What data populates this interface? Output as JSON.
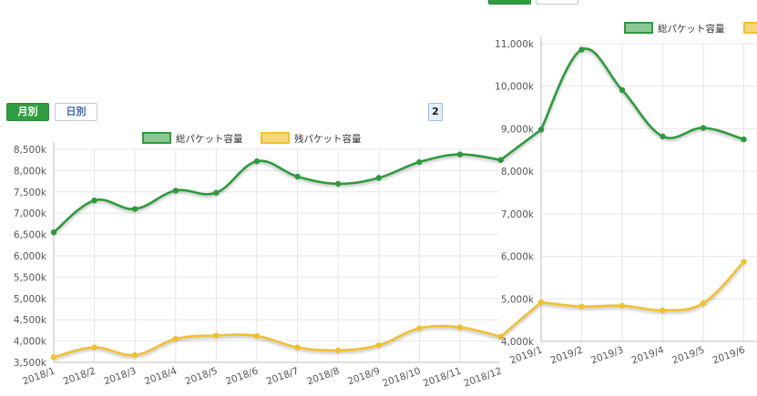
{
  "controls": {
    "monthly_label": "月別",
    "daily_label": "日別",
    "page_stub_label": "2"
  },
  "colors": {
    "total": "#2e9a3e",
    "total_fill": "#8cc895",
    "remaining": "#f0c030",
    "remaining_fill": "#f5d779",
    "grid": "#e6e6e6"
  },
  "chart_data": [
    {
      "type": "line",
      "categories": [
        "2018/1",
        "2018/2",
        "2018/3",
        "2018/4",
        "2018/5",
        "2018/6",
        "2018/7",
        "2018/8",
        "2018/9",
        "2018/10",
        "2018/11",
        "2018/12"
      ],
      "series": [
        {
          "name": "総パケット容量",
          "values": [
            6550,
            7300,
            7100,
            7530,
            7480,
            8220,
            7860,
            7690,
            7830,
            8200,
            8380,
            8250
          ]
        },
        {
          "name": "残パケット容量",
          "values": [
            3620,
            3850,
            3670,
            4050,
            4130,
            4120,
            3850,
            3780,
            3900,
            4300,
            4320,
            4100
          ]
        }
      ],
      "yticks": [
        "8,500k",
        "8,000k",
        "7,500k",
        "7,000k",
        "6,500k",
        "6,000k",
        "5,500k",
        "5,000k",
        "4,500k",
        "4,000k",
        "3,500k"
      ],
      "ylim": [
        3500,
        8500
      ],
      "legend": "top-center",
      "grid": true
    },
    {
      "type": "line",
      "categories": [
        "2019/1",
        "2019/2",
        "2019/3",
        "2019/4",
        "2019/5",
        "2019/6"
      ],
      "series": [
        {
          "name": "総パケット容量",
          "values": [
            8980,
            10860,
            9910,
            8820,
            9020,
            8750
          ]
        },
        {
          "name": "残パケット容量",
          "values": [
            4920,
            4820,
            4840,
            4730,
            4900,
            5870
          ]
        }
      ],
      "yticks": [
        "11,000k",
        "10,000k",
        "9,000k",
        "8,000k",
        "7,000k",
        "6,000k",
        "5,000k",
        "4,000k"
      ],
      "ylim": [
        4000,
        11000
      ],
      "legend": "top-right",
      "grid": true
    }
  ]
}
